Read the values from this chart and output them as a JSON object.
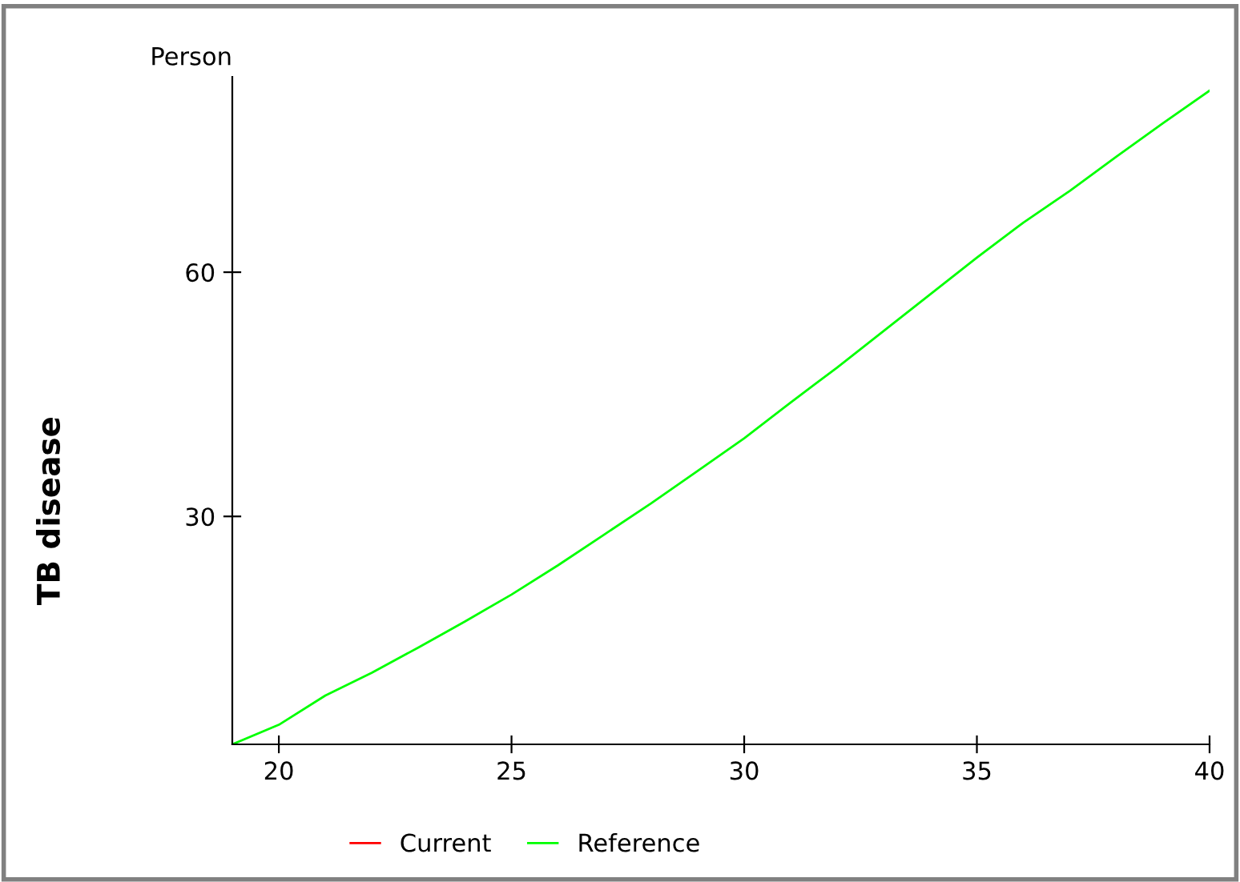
{
  "chart_data": {
    "type": "line",
    "ylabel": "TB disease",
    "annotations": [
      "Person"
    ],
    "x": [
      19,
      20,
      21,
      22,
      23,
      24,
      25,
      26,
      27,
      28,
      29,
      30,
      31,
      32,
      33,
      34,
      35,
      36,
      37,
      38,
      39,
      40
    ],
    "series": [
      {
        "name": "Current",
        "color": "#ff0000",
        "values": [
          null,
          null,
          null,
          null,
          null,
          null,
          null,
          null,
          null,
          null,
          null,
          null,
          null,
          null,
          null,
          null,
          null,
          null,
          null,
          null,
          null,
          null
        ]
      },
      {
        "name": "Reference",
        "color": "#00ff00",
        "values": [
          2,
          4.4,
          8.0,
          10.8,
          13.9,
          17.1,
          20.4,
          24.0,
          27.8,
          31.6,
          35.6,
          39.6,
          44.0,
          48.3,
          52.8,
          57.3,
          61.8,
          66.1,
          70.0,
          74.2,
          78.3,
          82.3
        ]
      }
    ],
    "xlim": [
      19,
      40
    ],
    "ylim": [
      2,
      84
    ],
    "xticks": [
      20,
      25,
      30,
      35,
      40
    ],
    "yticks": [
      30,
      60
    ],
    "grid": false,
    "legend": "bottom",
    "marker": "none",
    "line_style": "solid"
  }
}
